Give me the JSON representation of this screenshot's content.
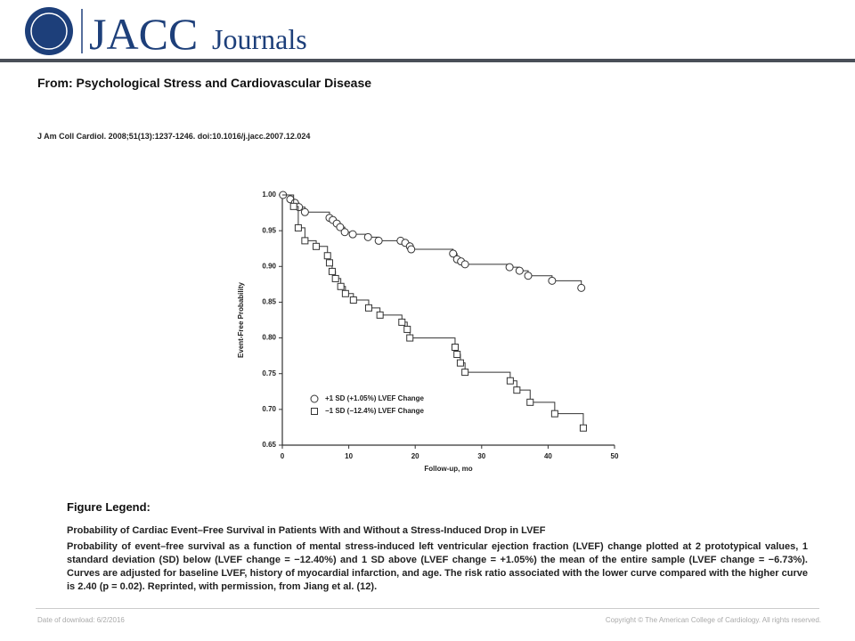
{
  "header": {
    "logo_main": "JACC",
    "logo_sub": "Journals"
  },
  "from": "From: Psychological Stress and Cardiovascular Disease",
  "citation": "J Am Coll Cardiol. 2008;51(13):1237-1246. doi:10.1016/j.jacc.2007.12.024",
  "chart_data": {
    "type": "step",
    "xlabel": "Follow-up, mo",
    "ylabel": "Event-Free Probability",
    "xlim": [
      0,
      50
    ],
    "xticks": [
      0,
      10,
      20,
      30,
      40,
      50
    ],
    "ylim": [
      0.65,
      1.0
    ],
    "yticks": [
      {
        "value": 0.65,
        "label": "0.65"
      },
      {
        "value": 0.7,
        "label": "0.70"
      },
      {
        "value": 0.75,
        "label": "0.75"
      },
      {
        "value": 0.8,
        "label": "0.80"
      },
      {
        "value": 0.85,
        "label": "0.85"
      },
      {
        "value": 0.9,
        "label": "0.90"
      },
      {
        "value": 0.95,
        "label": "0.95"
      },
      {
        "value": 1.0,
        "label": "1.00"
      }
    ],
    "legend": "bottom-left",
    "series": [
      {
        "name": "+1 SD (+1.05%) LVEF Change",
        "marker": "circle",
        "color": "#333333",
        "x": [
          0.1,
          1.2,
          1.9,
          2.5,
          3.4,
          7.1,
          7.6,
          8.2,
          8.7,
          9.4,
          10.6,
          12.9,
          14.5,
          17.8,
          18.5,
          19.2,
          19.4,
          25.7,
          26.3,
          26.9,
          27.5,
          34.2,
          35.7,
          37.0,
          40.6,
          45.0
        ],
        "values": [
          1.0,
          0.994,
          0.989,
          0.983,
          0.976,
          0.968,
          0.965,
          0.96,
          0.955,
          0.948,
          0.945,
          0.941,
          0.936,
          0.936,
          0.933,
          0.928,
          0.924,
          0.918,
          0.91,
          0.907,
          0.903,
          0.899,
          0.894,
          0.887,
          0.88,
          0.87
        ]
      },
      {
        "name": "−1 SD (−12.4%) LVEF Change",
        "marker": "square",
        "color": "#333333",
        "x": [
          1.7,
          2.4,
          3.4,
          5.1,
          6.8,
          7.1,
          7.5,
          8.0,
          8.8,
          9.5,
          10.7,
          13.0,
          14.7,
          18.0,
          18.8,
          19.2,
          26.0,
          26.3,
          26.8,
          27.5,
          34.3,
          35.3,
          37.3,
          41.0,
          45.3
        ],
        "values": [
          0.984,
          0.954,
          0.936,
          0.928,
          0.915,
          0.905,
          0.893,
          0.883,
          0.872,
          0.862,
          0.853,
          0.842,
          0.832,
          0.822,
          0.812,
          0.8,
          0.787,
          0.777,
          0.765,
          0.752,
          0.74,
          0.727,
          0.71,
          0.694,
          0.674
        ]
      }
    ]
  },
  "figure_legend": {
    "heading": "Figure Legend:",
    "title": "Probability of Cardiac Event–Free Survival in Patients With and Without a Stress-Induced Drop in LVEF",
    "body": "Probability of event–free survival as a function of mental stress-induced left ventricular ejection fraction (LVEF) change plotted at 2 prototypical values, 1 standard deviation (SD) below (LVEF change = −12.40%) and 1 SD above (LVEF change = +1.05%) the mean of the entire sample (LVEF change = −6.73%). Curves are adjusted for baseline LVEF, history of myocardial infarction, and age. The risk ratio associated with the lower curve compared with the higher curve is 2.40 (p = 0.02). Reprinted, with permission, from Jiang et al. (12)."
  },
  "footer": {
    "date": "Date of download: 6/2/2016",
    "copyright": "Copyright © The American College of Cardiology. All rights reserved."
  }
}
